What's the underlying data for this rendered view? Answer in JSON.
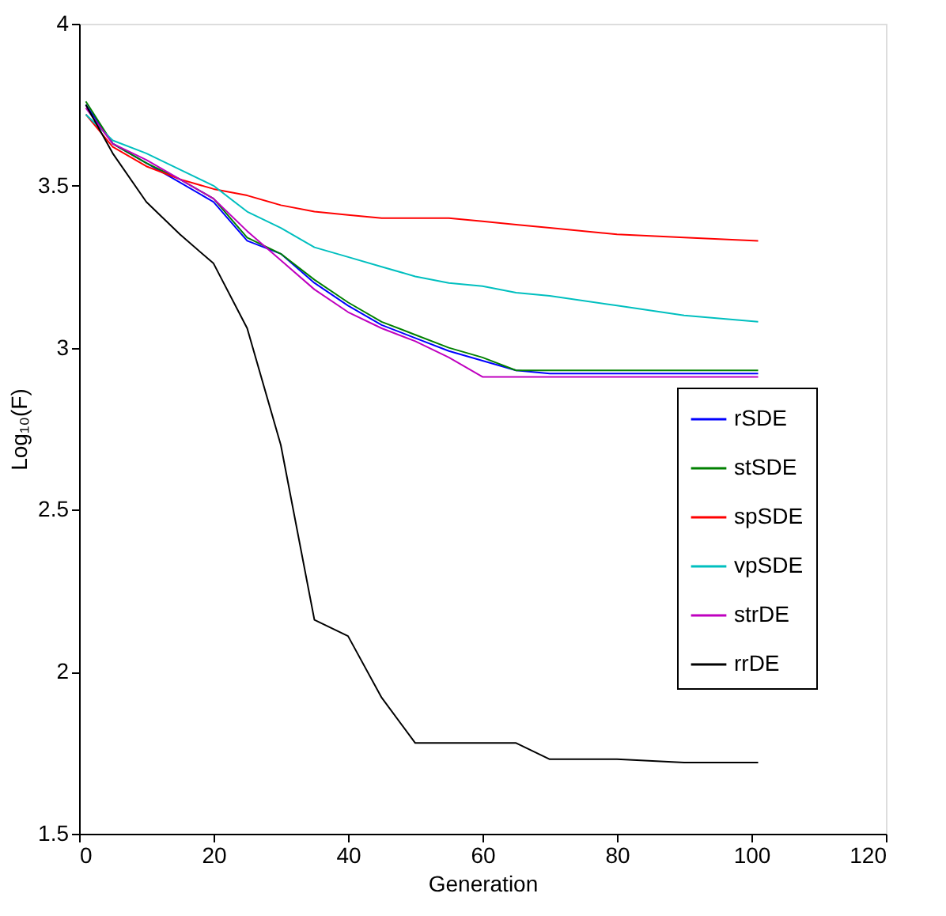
{
  "chart_data": {
    "type": "line",
    "xlabel": "Generation",
    "ylabel": "Log₁₀(F)",
    "xlim": [
      0,
      120
    ],
    "xticks": [
      0,
      20,
      40,
      60,
      80,
      100,
      120
    ],
    "ylim": [
      1.5,
      4
    ],
    "yticks": [
      1.5,
      2,
      2.5,
      3,
      3.5,
      4
    ],
    "grid": false,
    "legend": "right",
    "line_style": "solid",
    "marker": "none",
    "x": [
      1,
      5,
      10,
      15,
      20,
      25,
      30,
      35,
      40,
      45,
      50,
      55,
      60,
      65,
      70,
      80,
      90,
      101
    ],
    "series": [
      {
        "name": "rSDE",
        "color": "#0000ff",
        "values": [
          3.75,
          3.63,
          3.57,
          3.51,
          3.45,
          3.33,
          3.29,
          3.2,
          3.13,
          3.07,
          3.03,
          2.99,
          2.96,
          2.93,
          2.92,
          2.92,
          2.92,
          2.92
        ]
      },
      {
        "name": "stSDE",
        "color": "#008000",
        "values": [
          3.76,
          3.63,
          3.57,
          3.52,
          3.46,
          3.34,
          3.29,
          3.21,
          3.14,
          3.08,
          3.04,
          3.0,
          2.97,
          2.93,
          2.93,
          2.93,
          2.93,
          2.93
        ]
      },
      {
        "name": "spSDE",
        "color": "#ff0000",
        "values": [
          3.72,
          3.62,
          3.56,
          3.52,
          3.49,
          3.47,
          3.44,
          3.42,
          3.41,
          3.4,
          3.4,
          3.4,
          3.39,
          3.38,
          3.37,
          3.35,
          3.34,
          3.33
        ]
      },
      {
        "name": "vpSDE",
        "color": "#00bfbf",
        "values": [
          3.72,
          3.64,
          3.6,
          3.55,
          3.5,
          3.42,
          3.37,
          3.31,
          3.28,
          3.25,
          3.22,
          3.2,
          3.19,
          3.17,
          3.16,
          3.13,
          3.1,
          3.08
        ]
      },
      {
        "name": "strDE",
        "color": "#bf00bf",
        "values": [
          3.74,
          3.63,
          3.58,
          3.52,
          3.46,
          3.36,
          3.27,
          3.18,
          3.11,
          3.06,
          3.02,
          2.97,
          2.91,
          2.91,
          2.91,
          2.91,
          2.91,
          2.91
        ]
      },
      {
        "name": "rrDE",
        "color": "#000000",
        "values": [
          3.75,
          3.6,
          3.45,
          3.35,
          3.26,
          3.06,
          2.7,
          2.16,
          2.11,
          1.92,
          1.78,
          1.78,
          1.78,
          1.78,
          1.73,
          1.73,
          1.72,
          1.72
        ]
      }
    ]
  }
}
